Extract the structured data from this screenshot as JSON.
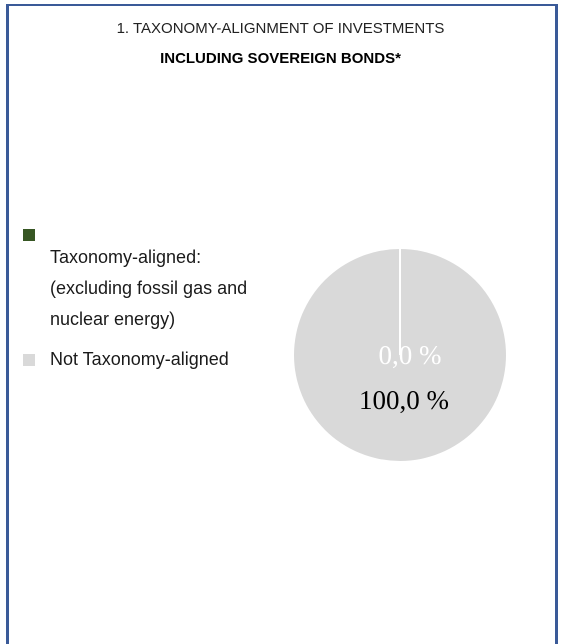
{
  "heading": {
    "line1": "1. TAXONOMY-ALIGNMENT OF INVESTMENTS",
    "line2": "INCLUDING SOVEREIGN BONDS*"
  },
  "colors": {
    "frame": "#3a5a98",
    "aligned": "#375623",
    "not_aligned": "#d9d9d9",
    "divider": "#ffffff"
  },
  "chart_data": {
    "type": "pie",
    "title": "1. TAXONOMY-ALIGNMENT OF INVESTMENTS INCLUDING SOVEREIGN BONDS*",
    "legend_placement": "left",
    "categories": [
      "Taxonomy-aligned: (excluding fossil gas and nuclear energy)",
      "Not Taxonomy-aligned"
    ],
    "values": [
      0.0,
      100.0
    ],
    "data_labels": [
      "0,0 %",
      "100,0 %"
    ],
    "legend": [
      {
        "label_lines": [
          "Taxonomy-aligned:",
          "(excluding fossil gas and",
          "nuclear energy)"
        ],
        "color": "#375623"
      },
      {
        "label_lines": [
          "Not Taxonomy-aligned"
        ],
        "color": "#d9d9d9"
      }
    ]
  }
}
